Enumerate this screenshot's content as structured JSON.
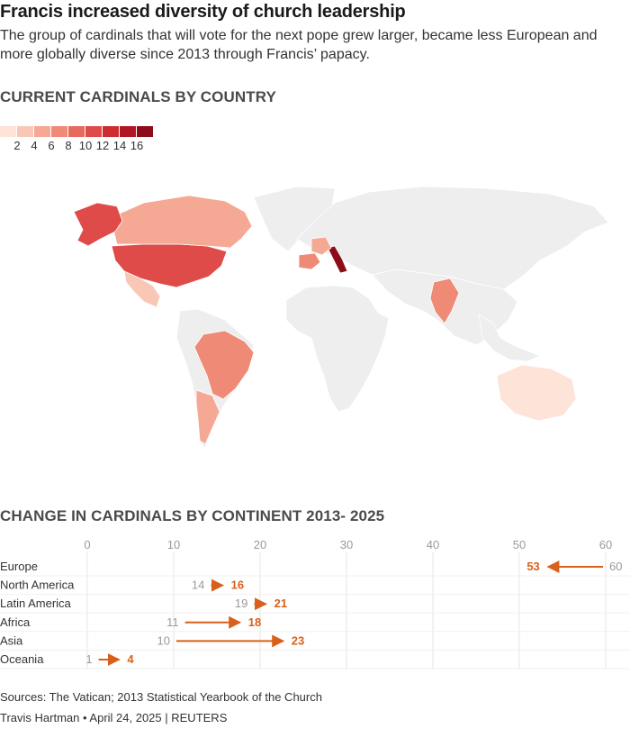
{
  "header": {
    "title": "Francis increased diversity of church leadership",
    "subtitle": "The group of cardinals that will vote for the next pope grew larger, became less European and more globally diverse since 2013 through Francis’ papacy."
  },
  "map_section": {
    "heading": "CURRENT CARDINALS BY COUNTRY",
    "legend": {
      "labels": [
        "2",
        "4",
        "6",
        "8",
        "10",
        "12",
        "14",
        "16"
      ],
      "colors": [
        "#fde3d8",
        "#f9c7b5",
        "#f5a893",
        "#ef8a76",
        "#e86a5e",
        "#df4b48",
        "#cf2c32",
        "#b01725",
        "#8c0c1a"
      ],
      "no_data_color": "#eeeeee"
    }
  },
  "chart_section": {
    "heading": "CHANGE IN CARDINALS BY CONTINENT 2013- 2025"
  },
  "chart_data": [
    {
      "type": "heatmap",
      "description_key": "map",
      "title": "CURRENT CARDINALS BY COUNTRY",
      "color_scale": {
        "min": 0,
        "max": 17,
        "ticks": [
          2,
          4,
          6,
          8,
          10,
          12,
          14,
          16
        ]
      },
      "regions": [
        {
          "name": "United States",
          "value": 10
        },
        {
          "name": "Italy",
          "value": 17
        },
        {
          "name": "Canada",
          "value": 4
        },
        {
          "name": "Alaska",
          "value": 10
        },
        {
          "name": "Mexico",
          "value": 2
        },
        {
          "name": "Brazil",
          "value": 7
        },
        {
          "name": "Argentina",
          "value": 4
        },
        {
          "name": "India",
          "value": 6
        },
        {
          "name": "Spain",
          "value": 6
        },
        {
          "name": "France",
          "value": 5
        },
        {
          "name": "Australia",
          "value": 1
        }
      ]
    },
    {
      "type": "dumbbell",
      "title": "CHANGE IN CARDINALS BY CONTINENT 2013- 2025",
      "xlim": [
        0,
        60
      ],
      "xticks": [
        0,
        10,
        20,
        30,
        40,
        50,
        60
      ],
      "categories": [
        "Europe",
        "North America",
        "Latin America",
        "Africa",
        "Asia",
        "Oceania"
      ],
      "series": [
        {
          "name": "2013",
          "values": [
            60,
            14,
            19,
            11,
            10,
            1
          ]
        },
        {
          "name": "2025",
          "values": [
            53,
            16,
            21,
            18,
            23,
            4
          ]
        }
      ],
      "arrow_color": "#d9601a",
      "start_color": "#9a9a9a"
    }
  ],
  "footer": {
    "sources": "Sources: The Vatican; 2013 Statistical Yearbook of the Church",
    "credit": "Travis Hartman • April 24, 2025 | REUTERS"
  }
}
